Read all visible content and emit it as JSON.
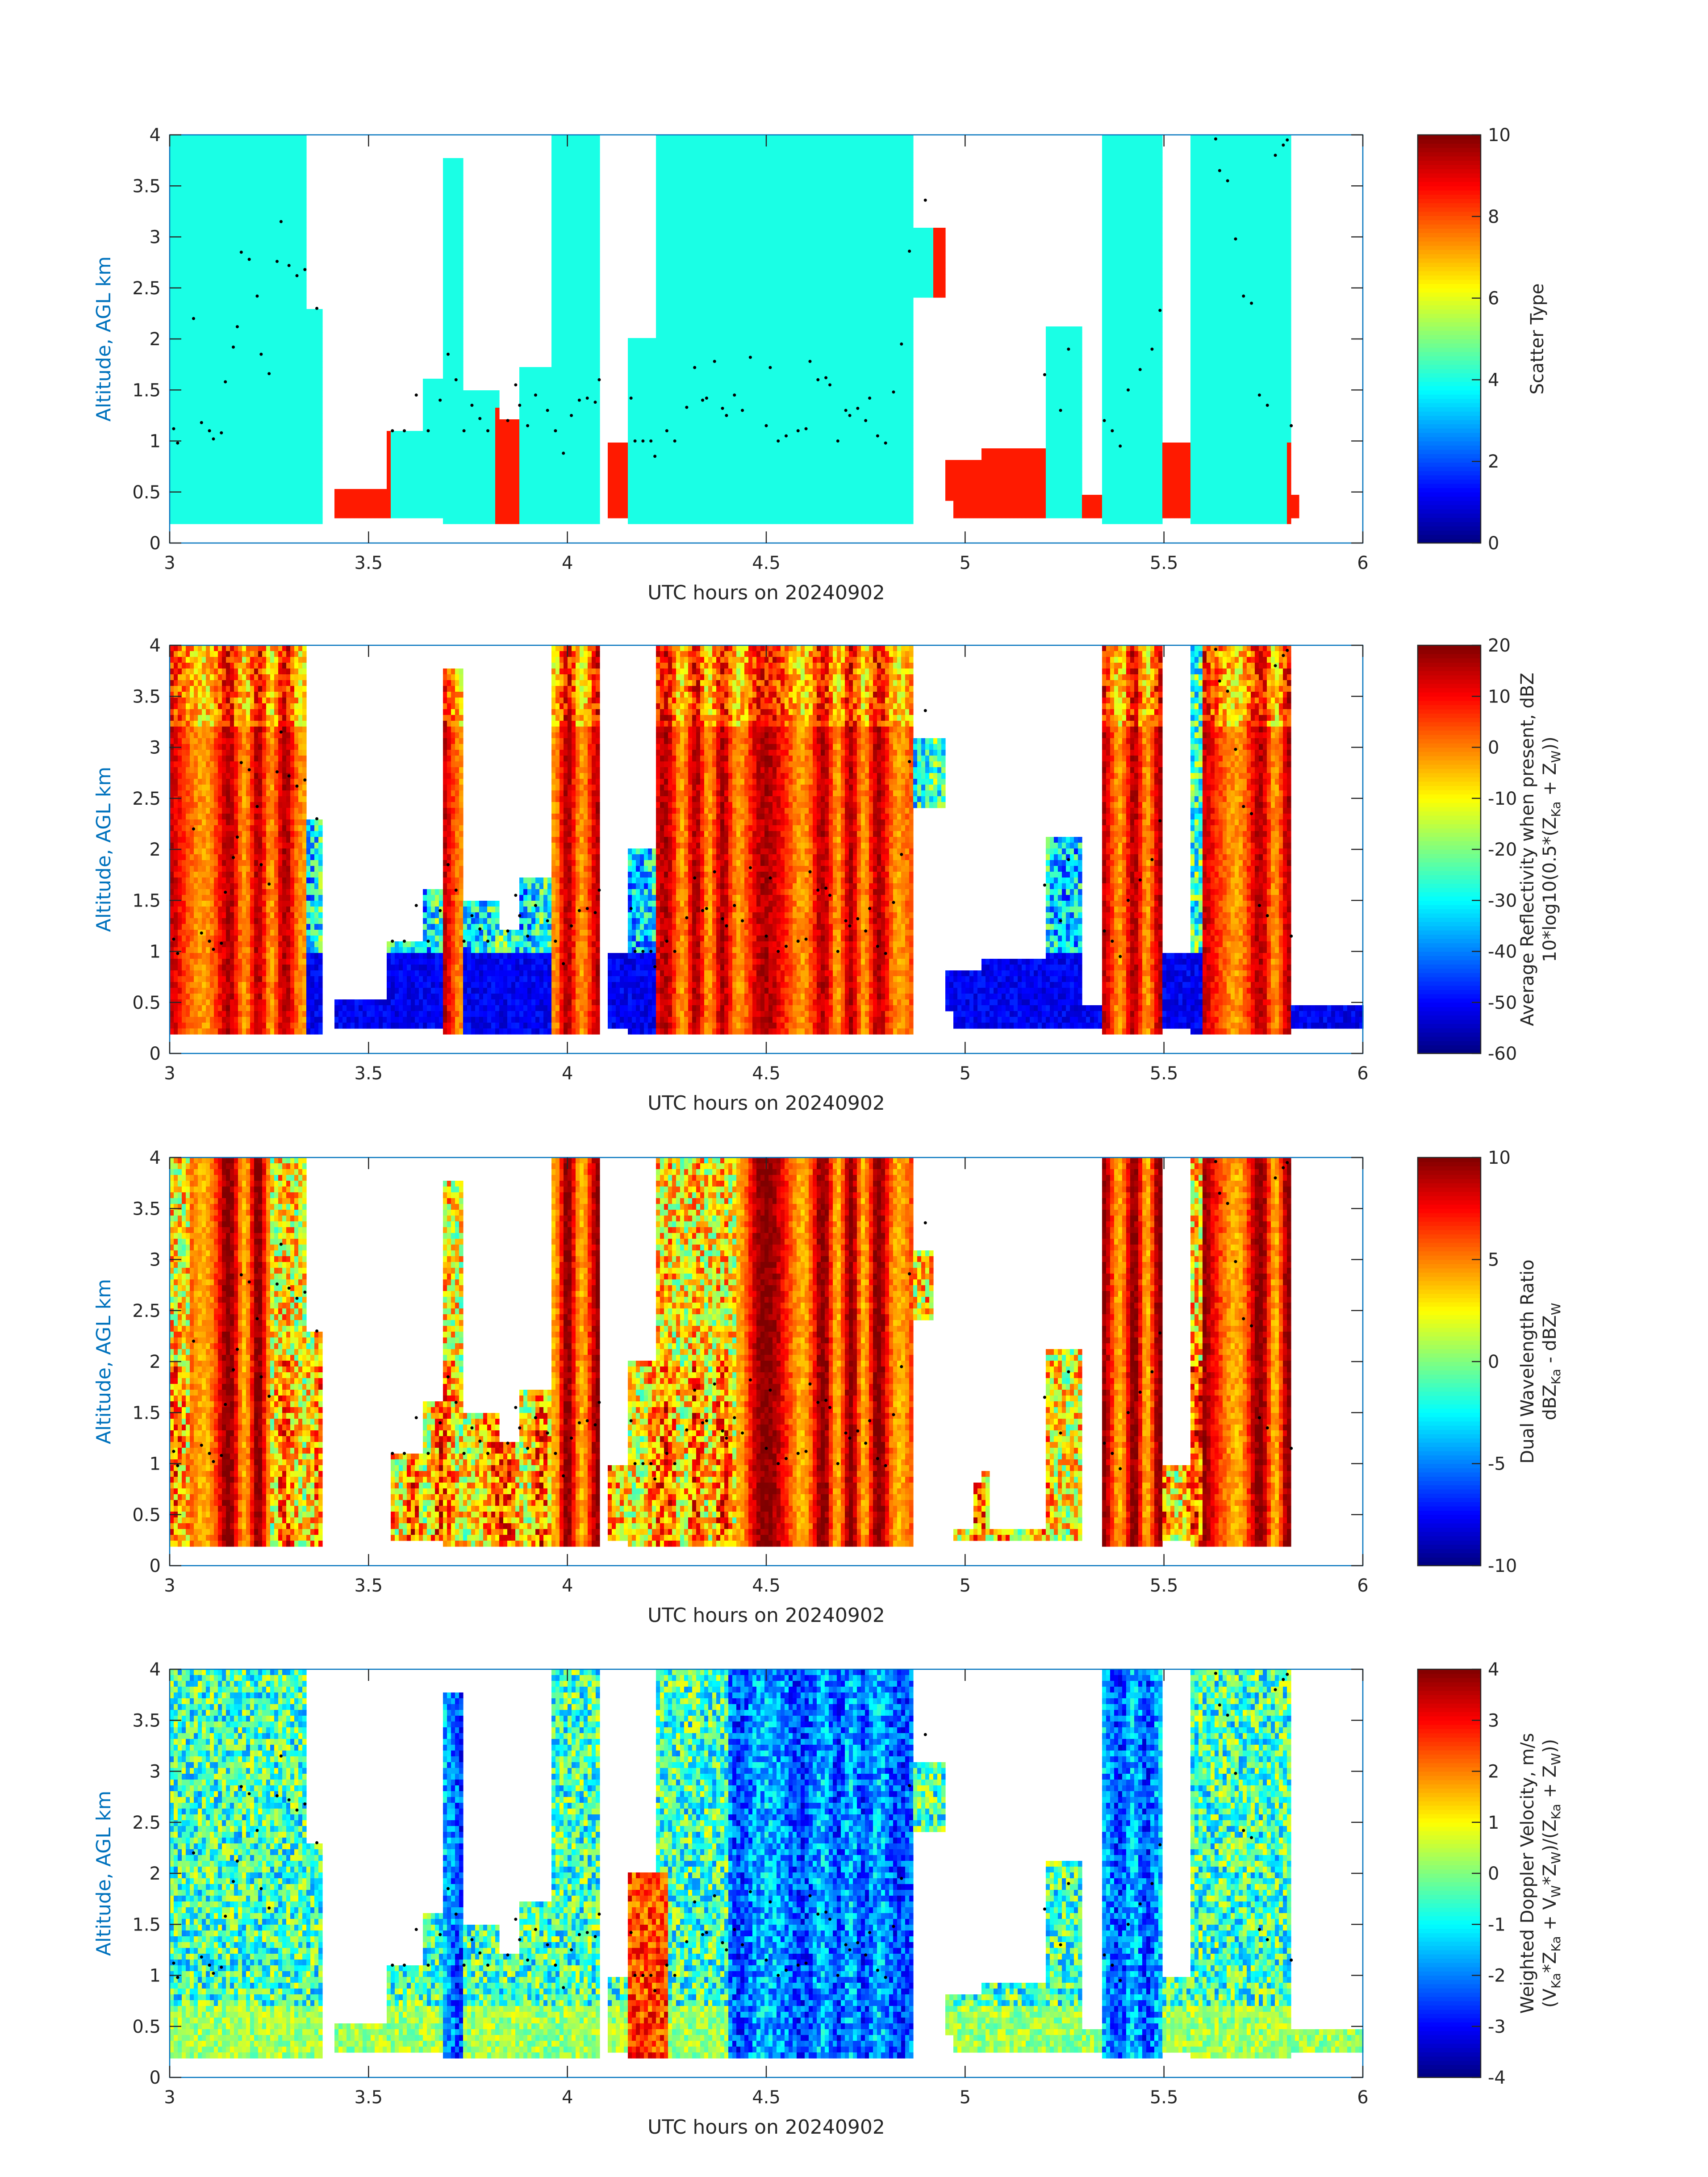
{
  "figure": {
    "background": "#ffffff",
    "axis_label_color": "#0072bd",
    "colormap": "jet"
  },
  "chart_data": [
    {
      "type": "heatmap",
      "xlabel": "UTC hours on 20240902",
      "ylabel": "Altitude, AGL km",
      "xlim": [
        3,
        6
      ],
      "ylim": [
        0,
        4
      ],
      "xticks": [
        "3",
        "3.5",
        "4",
        "4.5",
        "5",
        "5.5",
        "6"
      ],
      "yticks": [
        "0",
        "0.5",
        "1",
        "1.5",
        "2",
        "2.5",
        "3",
        "3.5",
        "4"
      ],
      "colorbar": {
        "label_lines": [
          "Scatter Type"
        ],
        "range": [
          0,
          10
        ],
        "ticks": [
          "0",
          "2",
          "4",
          "6",
          "8",
          "10"
        ]
      },
      "field": "scatter_type",
      "echo_top_dots": true
    },
    {
      "type": "heatmap",
      "xlabel": "UTC hours on 20240902",
      "ylabel": "Altitude, AGL km",
      "xlim": [
        3,
        6
      ],
      "ylim": [
        0,
        4
      ],
      "xticks": [
        "3",
        "3.5",
        "4",
        "4.5",
        "5",
        "5.5",
        "6"
      ],
      "yticks": [
        "0",
        "0.5",
        "1",
        "1.5",
        "2",
        "2.5",
        "3",
        "3.5",
        "4"
      ],
      "colorbar": {
        "label_lines": [
          "Average Reflectivity when present, dBZ",
          "10*log10(0.5*(Z",
          "Ka",
          " + Z",
          "W",
          "))"
        ],
        "range": [
          -60,
          20
        ],
        "ticks": [
          "-60",
          "-50",
          "-40",
          "-30",
          "-20",
          "-10",
          "0",
          "10",
          "20"
        ]
      },
      "field": "reflectivity",
      "echo_top_dots": true
    },
    {
      "type": "heatmap",
      "xlabel": "UTC hours on 20240902",
      "ylabel": "Altitude, AGL km",
      "xlim": [
        3,
        6
      ],
      "ylim": [
        0,
        4
      ],
      "xticks": [
        "3",
        "3.5",
        "4",
        "4.5",
        "5",
        "5.5",
        "6"
      ],
      "yticks": [
        "0",
        "0.5",
        "1",
        "1.5",
        "2",
        "2.5",
        "3",
        "3.5",
        "4"
      ],
      "colorbar": {
        "label_lines": [
          "Dual Wavelength Ratio",
          "dBZ",
          "Ka",
          " - dBZ",
          "W"
        ],
        "range": [
          -10,
          10
        ],
        "ticks": [
          "-10",
          "-5",
          "0",
          "5",
          "10"
        ]
      },
      "field": "dwr",
      "echo_top_dots": true
    },
    {
      "type": "heatmap",
      "xlabel": "UTC hours on 20240902",
      "ylabel": "Altitude, AGL km",
      "xlim": [
        3,
        6
      ],
      "ylim": [
        0,
        4
      ],
      "xticks": [
        "3",
        "3.5",
        "4",
        "4.5",
        "5",
        "5.5",
        "6"
      ],
      "yticks": [
        "0",
        "0.5",
        "1",
        "1.5",
        "2",
        "2.5",
        "3",
        "3.5",
        "4"
      ],
      "colorbar": {
        "label_lines": [
          "Weighted Doppler Velocity, m/s",
          "(V",
          "Ka",
          "*Z",
          "Ka",
          " + V",
          "W",
          "*Z",
          "W",
          ")/(Z",
          "Ka",
          " + Z",
          "W",
          "))"
        ],
        "range": [
          -4,
          4
        ],
        "ticks": [
          "-4",
          "-3",
          "-2",
          "-1",
          "0",
          "1",
          "2",
          "3",
          "4"
        ]
      },
      "field": "doppler_velocity",
      "echo_top_dots": true
    }
  ],
  "data_segments": [
    {
      "t0": 3.0,
      "t1": 3.07,
      "top": 4.0,
      "base": 0.2
    },
    {
      "t0": 3.07,
      "t1": 3.34,
      "top": 4.0,
      "base": 0.2
    },
    {
      "t0": 3.34,
      "t1": 3.38,
      "top": 2.3,
      "base": 0.2
    },
    {
      "t0": 3.41,
      "t1": 3.55,
      "top": 0.55,
      "base": 0.25
    },
    {
      "t0": 3.55,
      "t1": 3.64,
      "top": 1.1,
      "base": 0.25
    },
    {
      "t0": 3.64,
      "t1": 3.69,
      "top": 1.6,
      "base": 0.25
    },
    {
      "t0": 3.69,
      "t1": 3.74,
      "top": 3.8,
      "base": 0.2
    },
    {
      "t0": 3.74,
      "t1": 3.83,
      "top": 1.5,
      "base": 0.2
    },
    {
      "t0": 3.83,
      "t1": 3.88,
      "top": 1.2,
      "base": 0.2
    },
    {
      "t0": 3.88,
      "t1": 3.96,
      "top": 1.7,
      "base": 0.2
    },
    {
      "t0": 3.96,
      "t1": 4.08,
      "top": 4.0,
      "base": 0.2
    },
    {
      "t0": 4.1,
      "t1": 4.15,
      "top": 1.0,
      "base": 0.25
    },
    {
      "t0": 4.15,
      "t1": 4.22,
      "top": 2.0,
      "base": 0.2
    },
    {
      "t0": 4.22,
      "t1": 4.4,
      "top": 4.0,
      "base": 0.2
    },
    {
      "t0": 4.4,
      "t1": 4.6,
      "top": 4.0,
      "base": 0.2
    },
    {
      "t0": 4.6,
      "t1": 4.87,
      "top": 4.0,
      "base": 0.2
    },
    {
      "t0": 4.87,
      "t1": 4.95,
      "top": 3.1,
      "base": 2.4
    },
    {
      "t0": 4.92,
      "t1": 4.97,
      "top": 0.8,
      "base": 0.4
    },
    {
      "t0": 4.97,
      "t1": 5.04,
      "top": 0.8,
      "base": 0.25
    },
    {
      "t0": 5.04,
      "t1": 5.2,
      "top": 0.95,
      "base": 0.25
    },
    {
      "t0": 5.2,
      "t1": 5.29,
      "top": 2.1,
      "base": 0.25
    },
    {
      "t0": 5.29,
      "t1": 5.34,
      "top": 0.5,
      "base": 0.25
    },
    {
      "t0": 5.34,
      "t1": 5.5,
      "top": 4.0,
      "base": 0.2
    },
    {
      "t0": 5.5,
      "t1": 5.57,
      "top": 1.0,
      "base": 0.25
    },
    {
      "t0": 5.57,
      "t1": 5.82,
      "top": 4.0,
      "base": 0.2
    },
    {
      "t0": 5.82,
      "t1": 6.0,
      "top": 0.5,
      "base": 0.25
    }
  ],
  "echo_top_points": [
    [
      3.01,
      1.12
    ],
    [
      3.02,
      0.98
    ],
    [
      3.06,
      2.2
    ],
    [
      3.08,
      1.18
    ],
    [
      3.1,
      1.1
    ],
    [
      3.11,
      1.02
    ],
    [
      3.13,
      1.08
    ],
    [
      3.14,
      1.58
    ],
    [
      3.16,
      1.92
    ],
    [
      3.17,
      2.12
    ],
    [
      3.18,
      2.85
    ],
    [
      3.2,
      2.78
    ],
    [
      3.22,
      2.42
    ],
    [
      3.23,
      1.85
    ],
    [
      3.25,
      1.66
    ],
    [
      3.27,
      2.76
    ],
    [
      3.28,
      3.15
    ],
    [
      3.3,
      2.72
    ],
    [
      3.32,
      2.62
    ],
    [
      3.34,
      2.68
    ],
    [
      3.37,
      2.3
    ],
    [
      3.56,
      1.1
    ],
    [
      3.59,
      1.1
    ],
    [
      3.62,
      1.45
    ],
    [
      3.65,
      1.1
    ],
    [
      3.68,
      1.4
    ],
    [
      3.7,
      1.85
    ],
    [
      3.72,
      1.6
    ],
    [
      3.74,
      1.1
    ],
    [
      3.76,
      1.35
    ],
    [
      3.78,
      1.22
    ],
    [
      3.8,
      1.1
    ],
    [
      3.85,
      1.2
    ],
    [
      3.87,
      1.55
    ],
    [
      3.88,
      1.35
    ],
    [
      3.9,
      1.15
    ],
    [
      3.92,
      1.45
    ],
    [
      3.95,
      1.3
    ],
    [
      3.97,
      1.1
    ],
    [
      3.99,
      0.88
    ],
    [
      4.01,
      1.25
    ],
    [
      4.03,
      1.4
    ],
    [
      4.05,
      1.42
    ],
    [
      4.07,
      1.38
    ],
    [
      4.08,
      1.6
    ],
    [
      4.16,
      1.42
    ],
    [
      4.17,
      1.0
    ],
    [
      4.19,
      1.0
    ],
    [
      4.21,
      1.0
    ],
    [
      4.22,
      0.85
    ],
    [
      4.25,
      1.1
    ],
    [
      4.27,
      1.0
    ],
    [
      4.3,
      1.33
    ],
    [
      4.32,
      1.72
    ],
    [
      4.34,
      1.4
    ],
    [
      4.35,
      1.42
    ],
    [
      4.37,
      1.78
    ],
    [
      4.39,
      1.32
    ],
    [
      4.4,
      1.25
    ],
    [
      4.42,
      1.45
    ],
    [
      4.44,
      1.3
    ],
    [
      4.46,
      1.82
    ],
    [
      4.5,
      1.15
    ],
    [
      4.51,
      1.72
    ],
    [
      4.53,
      1.0
    ],
    [
      4.55,
      1.05
    ],
    [
      4.58,
      1.1
    ],
    [
      4.6,
      1.12
    ],
    [
      4.61,
      1.78
    ],
    [
      4.63,
      1.6
    ],
    [
      4.65,
      1.62
    ],
    [
      4.66,
      1.55
    ],
    [
      4.68,
      1.0
    ],
    [
      4.7,
      1.3
    ],
    [
      4.71,
      1.25
    ],
    [
      4.73,
      1.32
    ],
    [
      4.75,
      1.2
    ],
    [
      4.76,
      1.42
    ],
    [
      4.78,
      1.05
    ],
    [
      4.8,
      0.98
    ],
    [
      4.82,
      1.48
    ],
    [
      4.84,
      1.95
    ],
    [
      4.86,
      2.86
    ],
    [
      4.9,
      3.36
    ],
    [
      5.2,
      1.65
    ],
    [
      5.24,
      1.3
    ],
    [
      5.26,
      1.9
    ],
    [
      5.35,
      1.2
    ],
    [
      5.37,
      1.1
    ],
    [
      5.39,
      0.95
    ],
    [
      5.41,
      1.5
    ],
    [
      5.44,
      1.7
    ],
    [
      5.47,
      1.9
    ],
    [
      5.49,
      2.28
    ],
    [
      5.63,
      3.96
    ],
    [
      5.64,
      3.65
    ],
    [
      5.66,
      3.55
    ],
    [
      5.68,
      2.98
    ],
    [
      5.7,
      2.42
    ],
    [
      5.72,
      2.35
    ],
    [
      5.74,
      1.45
    ],
    [
      5.76,
      1.35
    ],
    [
      5.78,
      3.8
    ],
    [
      5.8,
      3.9
    ],
    [
      5.81,
      3.95
    ],
    [
      5.82,
      1.15
    ]
  ]
}
